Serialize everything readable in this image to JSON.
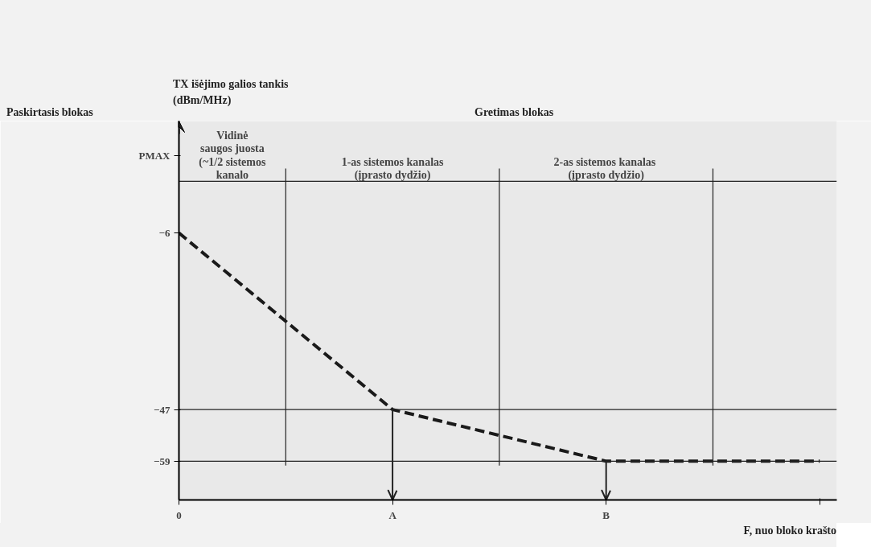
{
  "chart_data": {
    "type": "line",
    "ylabel": "TX išėjimo galios tankis\n(dBm/MHz)",
    "xlabel": "F, nuo bloko krašto",
    "categories": [
      "0",
      "A",
      "B",
      null
    ],
    "series": [
      {
        "color": "#1a1a1a",
        "values": [
          -6,
          -47,
          -59,
          -59
        ]
      }
    ],
    "line_style": "dashed",
    "ylim": [
      -68,
      20
    ],
    "yticks": [
      -59,
      -47,
      -6,
      {
        "value": 12,
        "label": "PMAX"
      }
    ],
    "ref_lines": [
      {
        "axis": "y",
        "value": 6,
        "label": null
      },
      {
        "axis": "y",
        "value": -47,
        "label": null
      },
      {
        "axis": "y",
        "value": -59,
        "label": null
      },
      {
        "axis": "x",
        "value": "A",
        "label": null
      },
      {
        "axis": "x",
        "value": "B",
        "label": null
      }
    ],
    "annotations": [
      "Paskirtasis blokas",
      "Gretimas blokas",
      "Vidinė\nsaugos juosta\n(~1/2 sistemos\nkanalo",
      "1-as sistemos kanalas\n(įprasto dydžio)",
      "2-as sistemos  kanalas\n(įprasto dydžio)"
    ]
  }
}
